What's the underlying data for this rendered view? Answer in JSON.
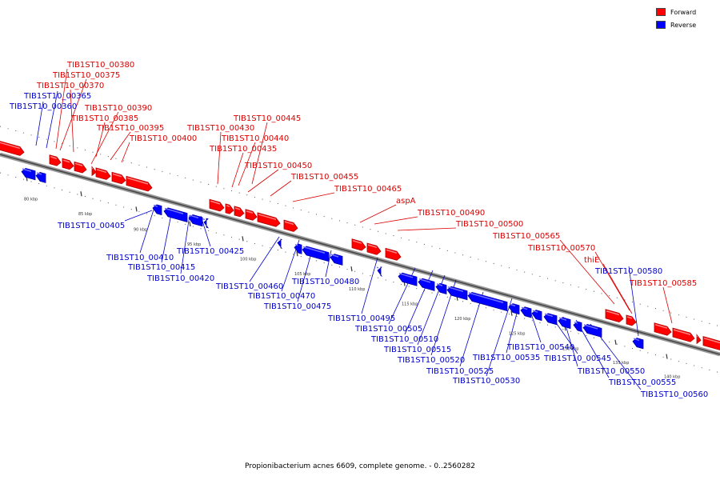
{
  "footer": "Propionibacterium acnes 6609, complete genome. - 0..2560282",
  "legend": [
    {
      "label": "Forward",
      "color": "#ff0000"
    },
    {
      "label": "Reverse",
      "color": "#0000ff"
    }
  ],
  "colors": {
    "forward": "#ff0000",
    "reverse": "#0000ff",
    "backbone": "#888888"
  },
  "kbp_ticks": [
    "80 kbp",
    "85 kbp",
    "90 kbp",
    "95 kbp",
    "100 kbp",
    "105 kbp",
    "110 kbp",
    "115 kbp",
    "120 kbp",
    "125 kbp",
    "130 kbp",
    "135 kbp",
    "140 kbp"
  ],
  "forward_genes": [
    "TIB1ST10_00380",
    "TIB1ST10_00375",
    "TIB1ST10_00370",
    "TIB1ST10_00390",
    "TIB1ST10_00385",
    "TIB1ST10_00395",
    "TIB1ST10_00400",
    "TIB1ST10_00445",
    "TIB1ST10_00430",
    "TIB1ST10_00440",
    "TIB1ST10_00435",
    "TIB1ST10_00450",
    "TIB1ST10_00455",
    "TIB1ST10_00465",
    "aspA",
    "TIB1ST10_00490",
    "TIB1ST10_00500",
    "TIB1ST10_00565",
    "TIB1ST10_00570",
    "thiE",
    "TIB1ST10_00585"
  ],
  "reverse_genes": [
    "TIB1ST10_00365",
    "TIB1ST10_00360",
    "TIB1ST10_00405",
    "TIB1ST10_00410",
    "TIB1ST10_00415",
    "TIB1ST10_00420",
    "TIB1ST10_00425",
    "TIB1ST10_00460",
    "TIB1ST10_00470",
    "TIB1ST10_00475",
    "TIB1ST10_00480",
    "TIB1ST10_00495",
    "TIB1ST10_00505",
    "TIB1ST10_00510",
    "TIB1ST10_00515",
    "TIB1ST10_00520",
    "TIB1ST10_00525",
    "TIB1ST10_00530",
    "TIB1ST10_00535",
    "TIB1ST10_00540",
    "TIB1ST10_00545",
    "TIB1ST10_00550",
    "TIB1ST10_00555",
    "TIB1ST10_00560",
    "TIB1ST10_00580"
  ]
}
